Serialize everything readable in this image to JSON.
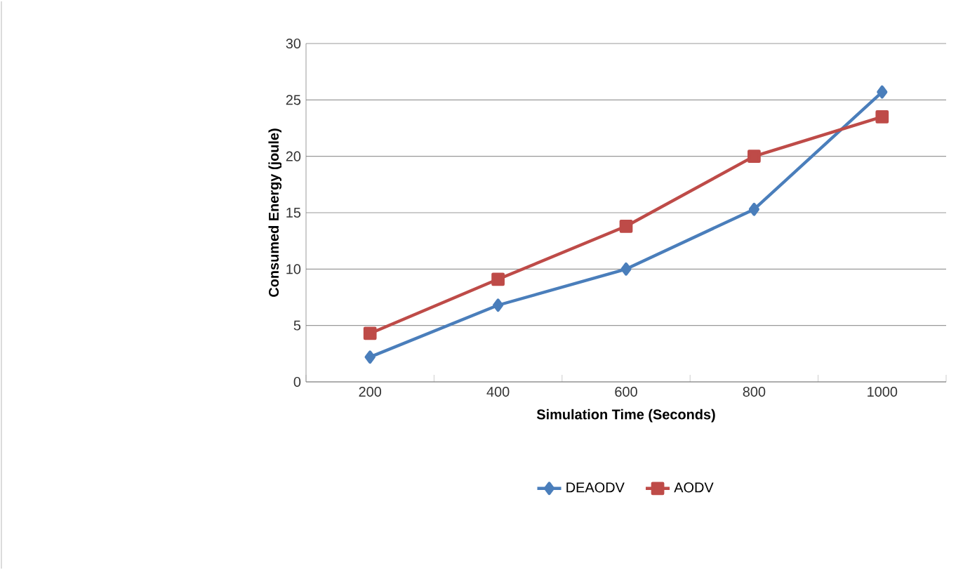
{
  "chart_data": {
    "type": "line",
    "xlabel": "Simulation Time (Seconds)",
    "ylabel": "Consumed Energy (joule)",
    "categories": [
      "200",
      "400",
      "600",
      "800",
      "1000"
    ],
    "series": [
      {
        "name": "DEAODV",
        "color": "#4a7ebb",
        "marker": "diamond",
        "values": [
          2.2,
          6.8,
          10.0,
          15.3,
          25.7
        ]
      },
      {
        "name": "AODV",
        "color": "#be4b48",
        "marker": "square",
        "values": [
          4.3,
          9.1,
          13.8,
          20.0,
          23.5
        ]
      }
    ],
    "ylim": [
      0,
      30
    ],
    "yticks": [
      0,
      5,
      10,
      15,
      20,
      25,
      30
    ],
    "grid": "y",
    "legend": "bottom",
    "line_style": "solid"
  }
}
